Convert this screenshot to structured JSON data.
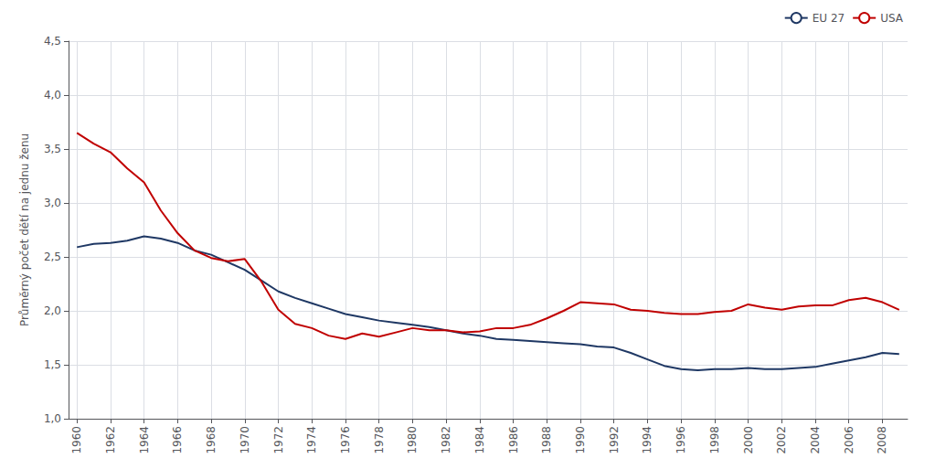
{
  "chart_data": {
    "type": "line",
    "ylabel": "Průměrný počet dětí na jednu ženu",
    "x": [
      1960,
      1961,
      1962,
      1963,
      1964,
      1965,
      1966,
      1967,
      1968,
      1969,
      1970,
      1971,
      1972,
      1973,
      1974,
      1975,
      1976,
      1977,
      1978,
      1979,
      1980,
      1981,
      1982,
      1983,
      1984,
      1985,
      1986,
      1987,
      1988,
      1989,
      1990,
      1991,
      1992,
      1993,
      1994,
      1995,
      1996,
      1997,
      1998,
      1999,
      2000,
      2001,
      2002,
      2003,
      2004,
      2005,
      2006,
      2007,
      2008,
      2009
    ],
    "series": [
      {
        "name": "EU 27",
        "color": "#1F3864",
        "values": [
          2.59,
          2.62,
          2.63,
          2.65,
          2.69,
          2.67,
          2.63,
          2.56,
          2.52,
          2.45,
          2.38,
          2.28,
          2.18,
          2.12,
          2.07,
          2.02,
          1.97,
          1.94,
          1.91,
          1.89,
          1.87,
          1.85,
          1.82,
          1.79,
          1.77,
          1.74,
          1.73,
          1.72,
          1.71,
          1.7,
          1.69,
          1.67,
          1.66,
          1.61,
          1.55,
          1.49,
          1.46,
          1.45,
          1.46,
          1.46,
          1.47,
          1.46,
          1.46,
          1.47,
          1.48,
          1.51,
          1.54,
          1.57,
          1.61,
          1.6
        ]
      },
      {
        "name": "USA",
        "color": "#C00000",
        "values": [
          3.65,
          3.55,
          3.47,
          3.32,
          3.19,
          2.93,
          2.72,
          2.56,
          2.49,
          2.46,
          2.48,
          2.27,
          2.01,
          1.88,
          1.84,
          1.77,
          1.74,
          1.79,
          1.76,
          1.8,
          1.84,
          1.82,
          1.82,
          1.8,
          1.81,
          1.84,
          1.84,
          1.87,
          1.93,
          2.0,
          2.08,
          2.07,
          2.06,
          2.01,
          2.0,
          1.98,
          1.97,
          1.97,
          1.99,
          2.0,
          2.06,
          2.03,
          2.01,
          2.04,
          2.05,
          2.05,
          2.1,
          2.12,
          2.08,
          2.01
        ]
      }
    ],
    "xlim": [
      1959.5,
      2009.5
    ],
    "xticks": [
      1960,
      1962,
      1964,
      1966,
      1968,
      1970,
      1972,
      1974,
      1976,
      1978,
      1980,
      1982,
      1984,
      1986,
      1988,
      1990,
      1992,
      1994,
      1996,
      1998,
      2000,
      2002,
      2004,
      2006,
      2008
    ],
    "ylim": [
      1.0,
      4.5
    ],
    "yticks": [
      {
        "value": 1.0,
        "label": "1,0"
      },
      {
        "value": 1.5,
        "label": "1,5"
      },
      {
        "value": 2.0,
        "label": "2,0"
      },
      {
        "value": 2.5,
        "label": "2,5"
      },
      {
        "value": 3.0,
        "label": "3,0"
      },
      {
        "value": 3.5,
        "label": "3,5"
      },
      {
        "value": 4.0,
        "label": "4,0"
      },
      {
        "value": 4.5,
        "label": "4,5"
      }
    ],
    "grid": true,
    "legend": "upper right"
  }
}
